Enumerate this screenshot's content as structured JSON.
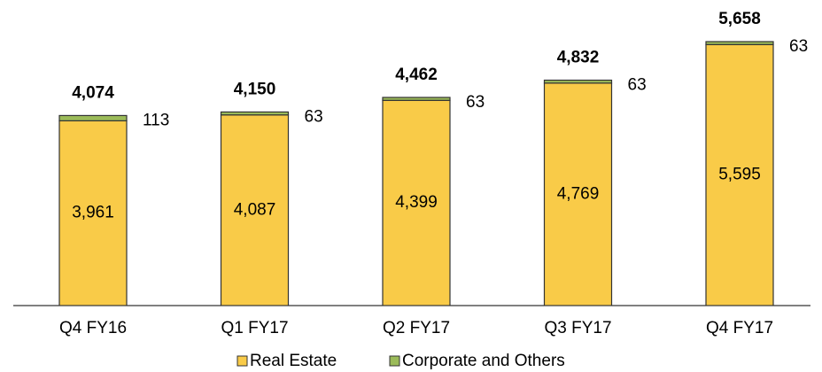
{
  "chart_data": {
    "type": "stacked_bar",
    "categories": [
      "Q4 FY16",
      "Q1 FY17",
      "Q2 FY17",
      "Q3 FY17",
      "Q4 FY17"
    ],
    "series": [
      {
        "name": "Real Estate",
        "color": "#f9cb48",
        "values": [
          3961,
          4087,
          4399,
          4769,
          5595
        ],
        "value_labels": [
          "3,961",
          "4,087",
          "4,399",
          "4,769",
          "5,595"
        ]
      },
      {
        "name": "Corporate and Others",
        "color": "#9bbb59",
        "values": [
          113,
          63,
          63,
          63,
          63
        ]
      }
    ],
    "totals": [
      4074,
      4150,
      4462,
      4832,
      5658
    ],
    "total_labels": [
      "4,074",
      "4,150",
      "4,462",
      "4,832",
      "5,658"
    ],
    "legend": "bottom"
  }
}
